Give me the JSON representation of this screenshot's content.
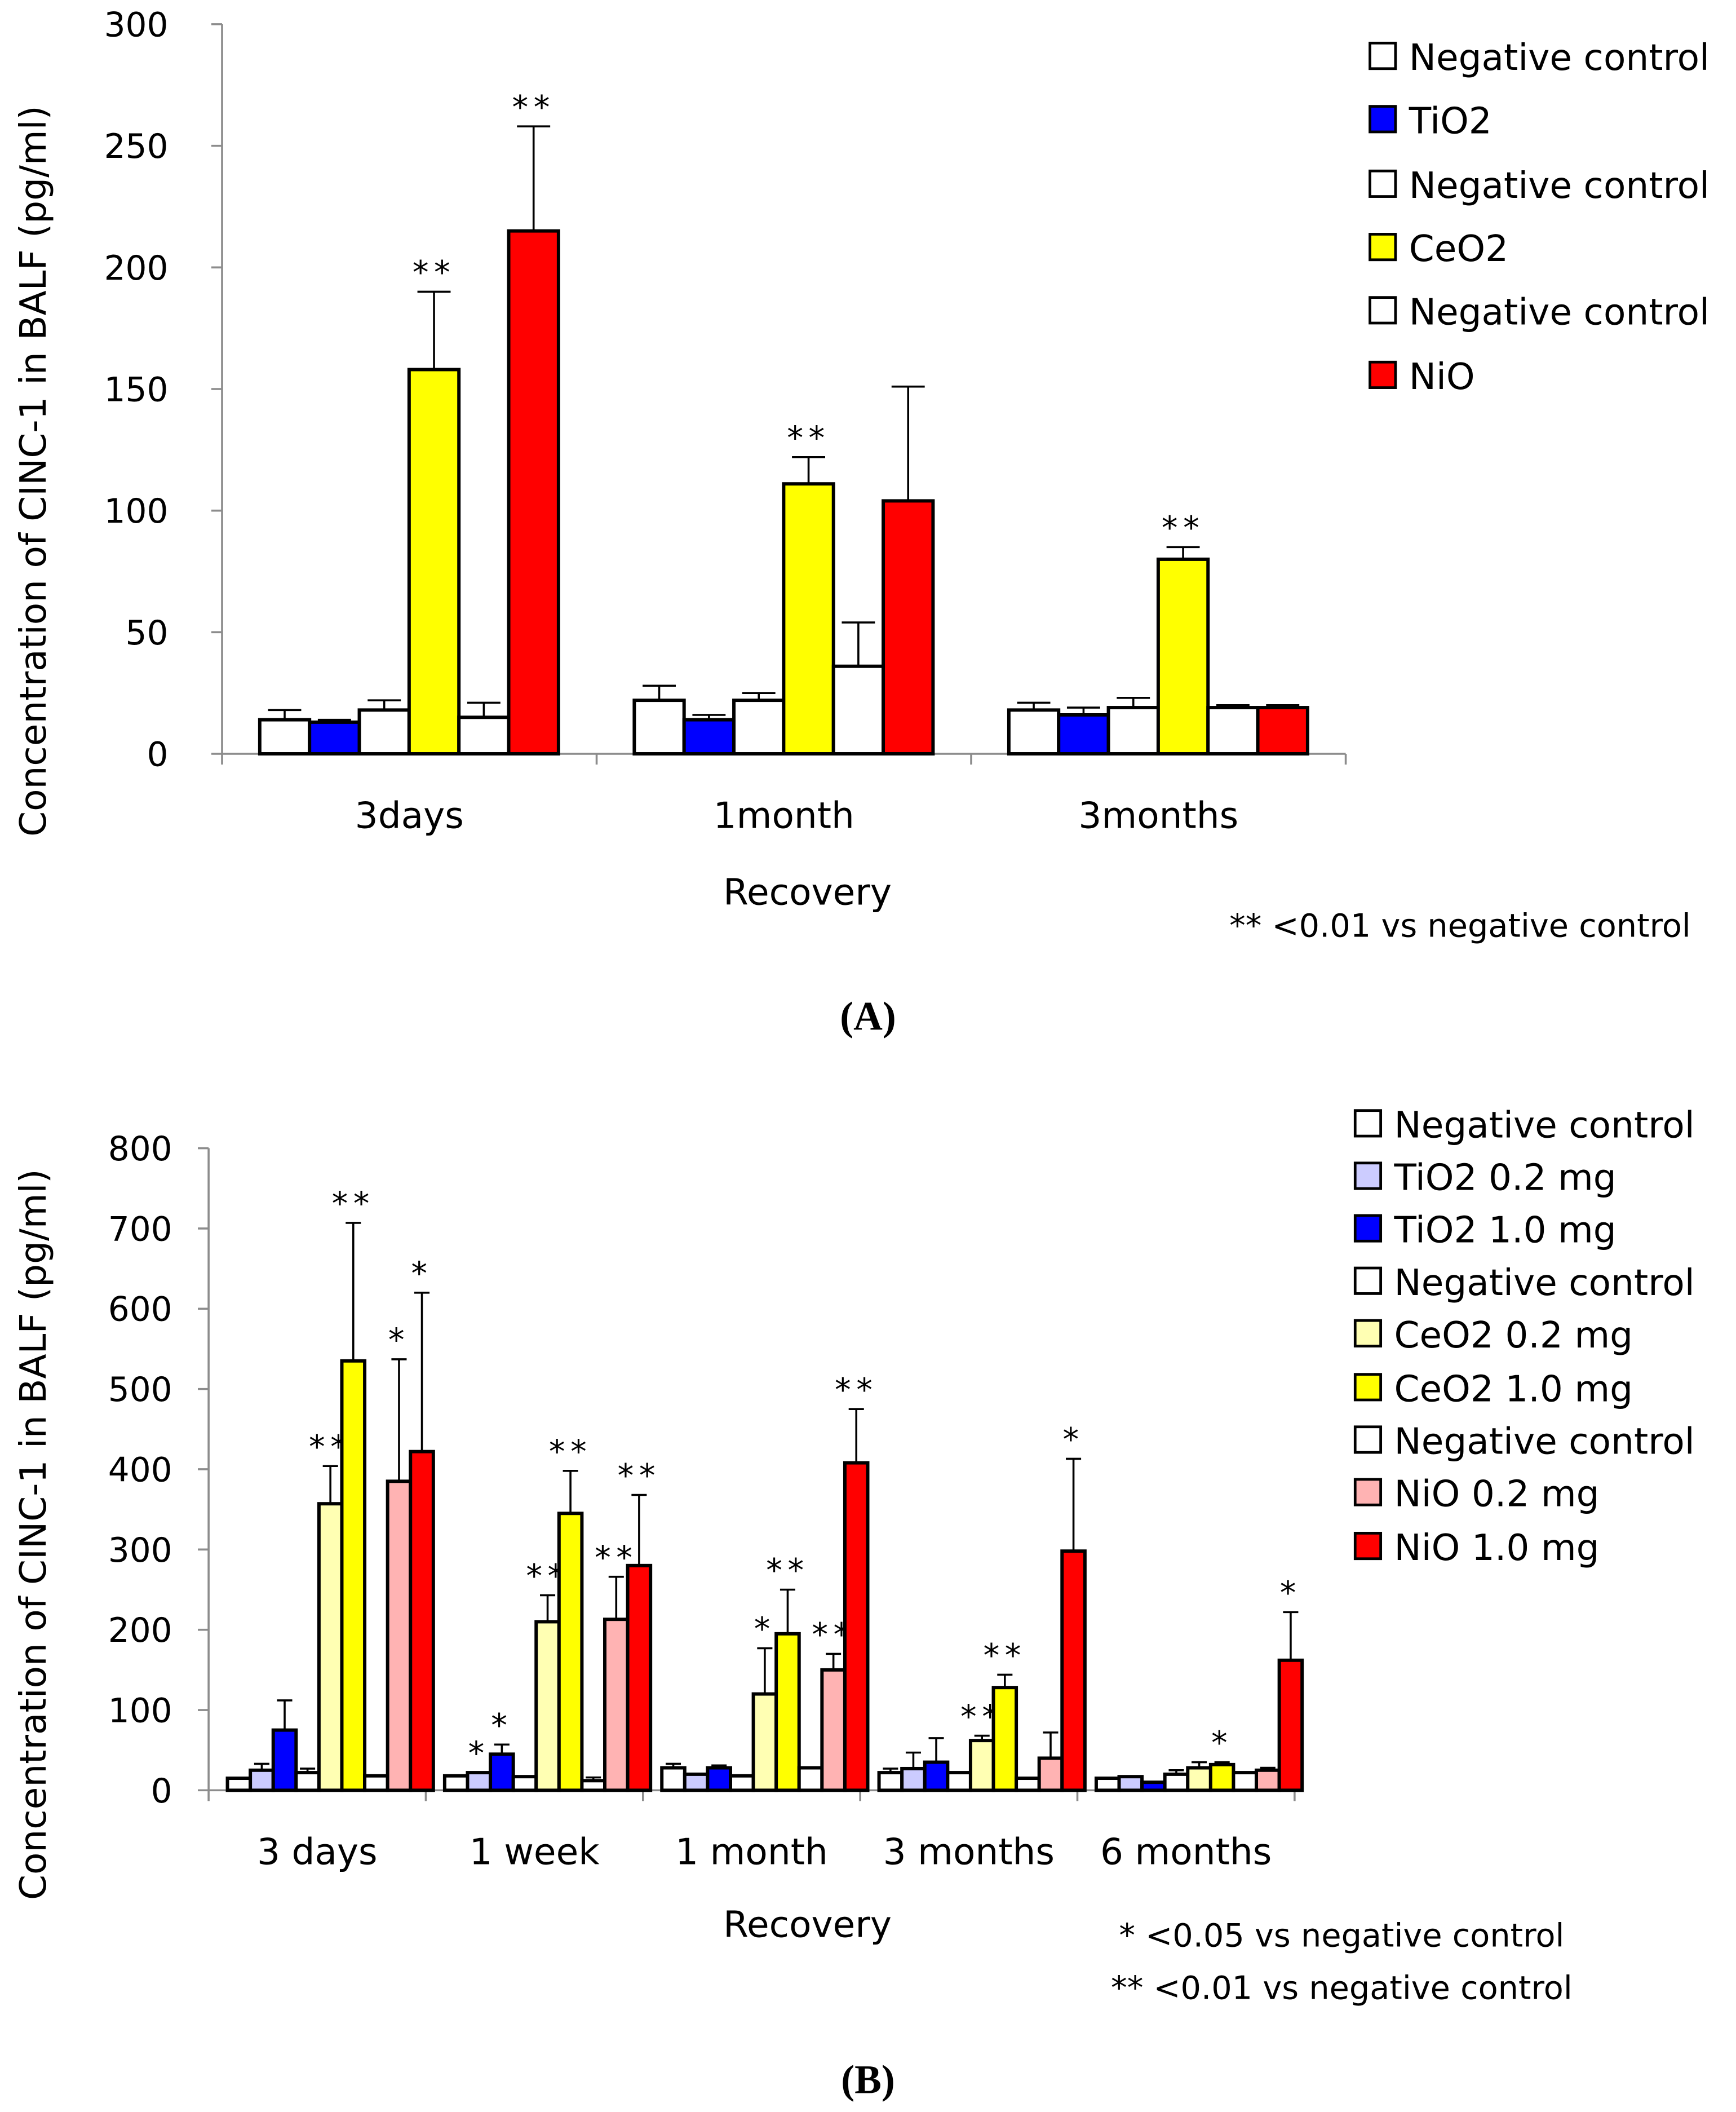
{
  "chart_data": [
    {
      "type": "bar",
      "panel_label": "(A)",
      "ylabel": "Concentration of CINC-1 in BALF (pg/ml)",
      "xlabel": "Recovery",
      "ylim": [
        0,
        300
      ],
      "yticks": [
        "0",
        "50",
        "100",
        "150",
        "200",
        "250",
        "300"
      ],
      "categories": [
        "3days",
        "1month",
        "3months"
      ],
      "legend_position": "top-right",
      "footnotes": [
        "** <0.01  vs negative control"
      ],
      "series": [
        {
          "name": "Negative control",
          "color": "#FFFFFF",
          "values": [
            14,
            22,
            18
          ],
          "errors": [
            4,
            6,
            3
          ],
          "sig": [
            "",
            "",
            ""
          ]
        },
        {
          "name": "TiO2",
          "color": "#0000FF",
          "values": [
            13,
            14,
            16
          ],
          "errors": [
            1,
            2,
            3
          ],
          "sig": [
            "",
            "",
            ""
          ]
        },
        {
          "name": "Negative control",
          "color": "#FFFFFF",
          "values": [
            18,
            22,
            19
          ],
          "errors": [
            4,
            3,
            4
          ],
          "sig": [
            "",
            "",
            ""
          ]
        },
        {
          "name": "CeO2",
          "color": "#FFFF00",
          "values": [
            158,
            111,
            80
          ],
          "errors": [
            32,
            11,
            5
          ],
          "sig": [
            "**",
            "**",
            "**"
          ]
        },
        {
          "name": "Negative control",
          "color": "#FFFFFF",
          "values": [
            15,
            36,
            19
          ],
          "errors": [
            6,
            18,
            1
          ],
          "sig": [
            "",
            "",
            ""
          ]
        },
        {
          "name": "NiO",
          "color": "#FF0000",
          "values": [
            215,
            104,
            19
          ],
          "errors": [
            43,
            47,
            1
          ],
          "sig": [
            "**",
            "",
            ""
          ]
        }
      ]
    },
    {
      "type": "bar",
      "panel_label": "(B)",
      "ylabel": "Concentration of CINC-1 in BALF (pg/ml)",
      "xlabel": "Recovery",
      "ylim": [
        0,
        800
      ],
      "yticks": [
        "0",
        "100",
        "200",
        "300",
        "400",
        "500",
        "600",
        "700",
        "800"
      ],
      "categories": [
        "3 days",
        "1 week",
        "1 month",
        "3 months",
        "6 months"
      ],
      "legend_position": "top-right",
      "footnotes": [
        "* <0.05 vs negative control",
        "** <0.01  vs negative control"
      ],
      "series": [
        {
          "name": "Negative control",
          "color": "#FFFFFF",
          "values": [
            15,
            18,
            28,
            22,
            15
          ],
          "errors": [
            0,
            0,
            5,
            5,
            0
          ],
          "sig": [
            "",
            "",
            "",
            "",
            ""
          ]
        },
        {
          "name": "TiO2 0.2 mg",
          "color": "#CCCCFF",
          "values": [
            25,
            22,
            20,
            27,
            17
          ],
          "errors": [
            8,
            0,
            0,
            20,
            0
          ],
          "sig": [
            "",
            "*",
            "",
            "",
            ""
          ]
        },
        {
          "name": "TiO2 1.0 mg",
          "color": "#0000FF",
          "values": [
            75,
            45,
            28,
            35,
            10
          ],
          "errors": [
            37,
            12,
            3,
            30,
            0
          ],
          "sig": [
            "",
            "*",
            "",
            "",
            ""
          ]
        },
        {
          "name": "Negative control",
          "color": "#FFFFFF",
          "values": [
            22,
            17,
            18,
            22,
            20
          ],
          "errors": [
            5,
            0,
            0,
            0,
            5
          ],
          "sig": [
            "",
            "",
            "",
            "",
            ""
          ]
        },
        {
          "name": "CeO2 0.2 mg",
          "color": "#FFFFB3",
          "values": [
            357,
            210,
            120,
            62,
            28
          ],
          "errors": [
            47,
            33,
            57,
            6,
            7
          ],
          "sig": [
            "**",
            "**",
            "*",
            "**",
            ""
          ]
        },
        {
          "name": "CeO2 1.0 mg",
          "color": "#FFFF00",
          "values": [
            535,
            345,
            195,
            128,
            32
          ],
          "errors": [
            172,
            53,
            55,
            16,
            3
          ],
          "sig": [
            "**",
            "**",
            "**",
            "**",
            "*"
          ]
        },
        {
          "name": "Negative control",
          "color": "#FFFFFF",
          "values": [
            18,
            12,
            28,
            15,
            22
          ],
          "errors": [
            0,
            4,
            0,
            0,
            0
          ],
          "sig": [
            "",
            "",
            "",
            "",
            ""
          ]
        },
        {
          "name": "NiO 0.2 mg",
          "color": "#FFB3B3",
          "values": [
            385,
            213,
            150,
            40,
            25
          ],
          "errors": [
            152,
            53,
            20,
            32,
            3
          ],
          "sig": [
            "*",
            "**",
            "**",
            "",
            ""
          ]
        },
        {
          "name": "NiO 1.0 mg",
          "color": "#FF0000",
          "values": [
            422,
            280,
            408,
            298,
            162
          ],
          "errors": [
            198,
            88,
            67,
            115,
            60
          ],
          "sig": [
            "*",
            "**",
            "**",
            "*",
            "*"
          ]
        }
      ]
    }
  ]
}
